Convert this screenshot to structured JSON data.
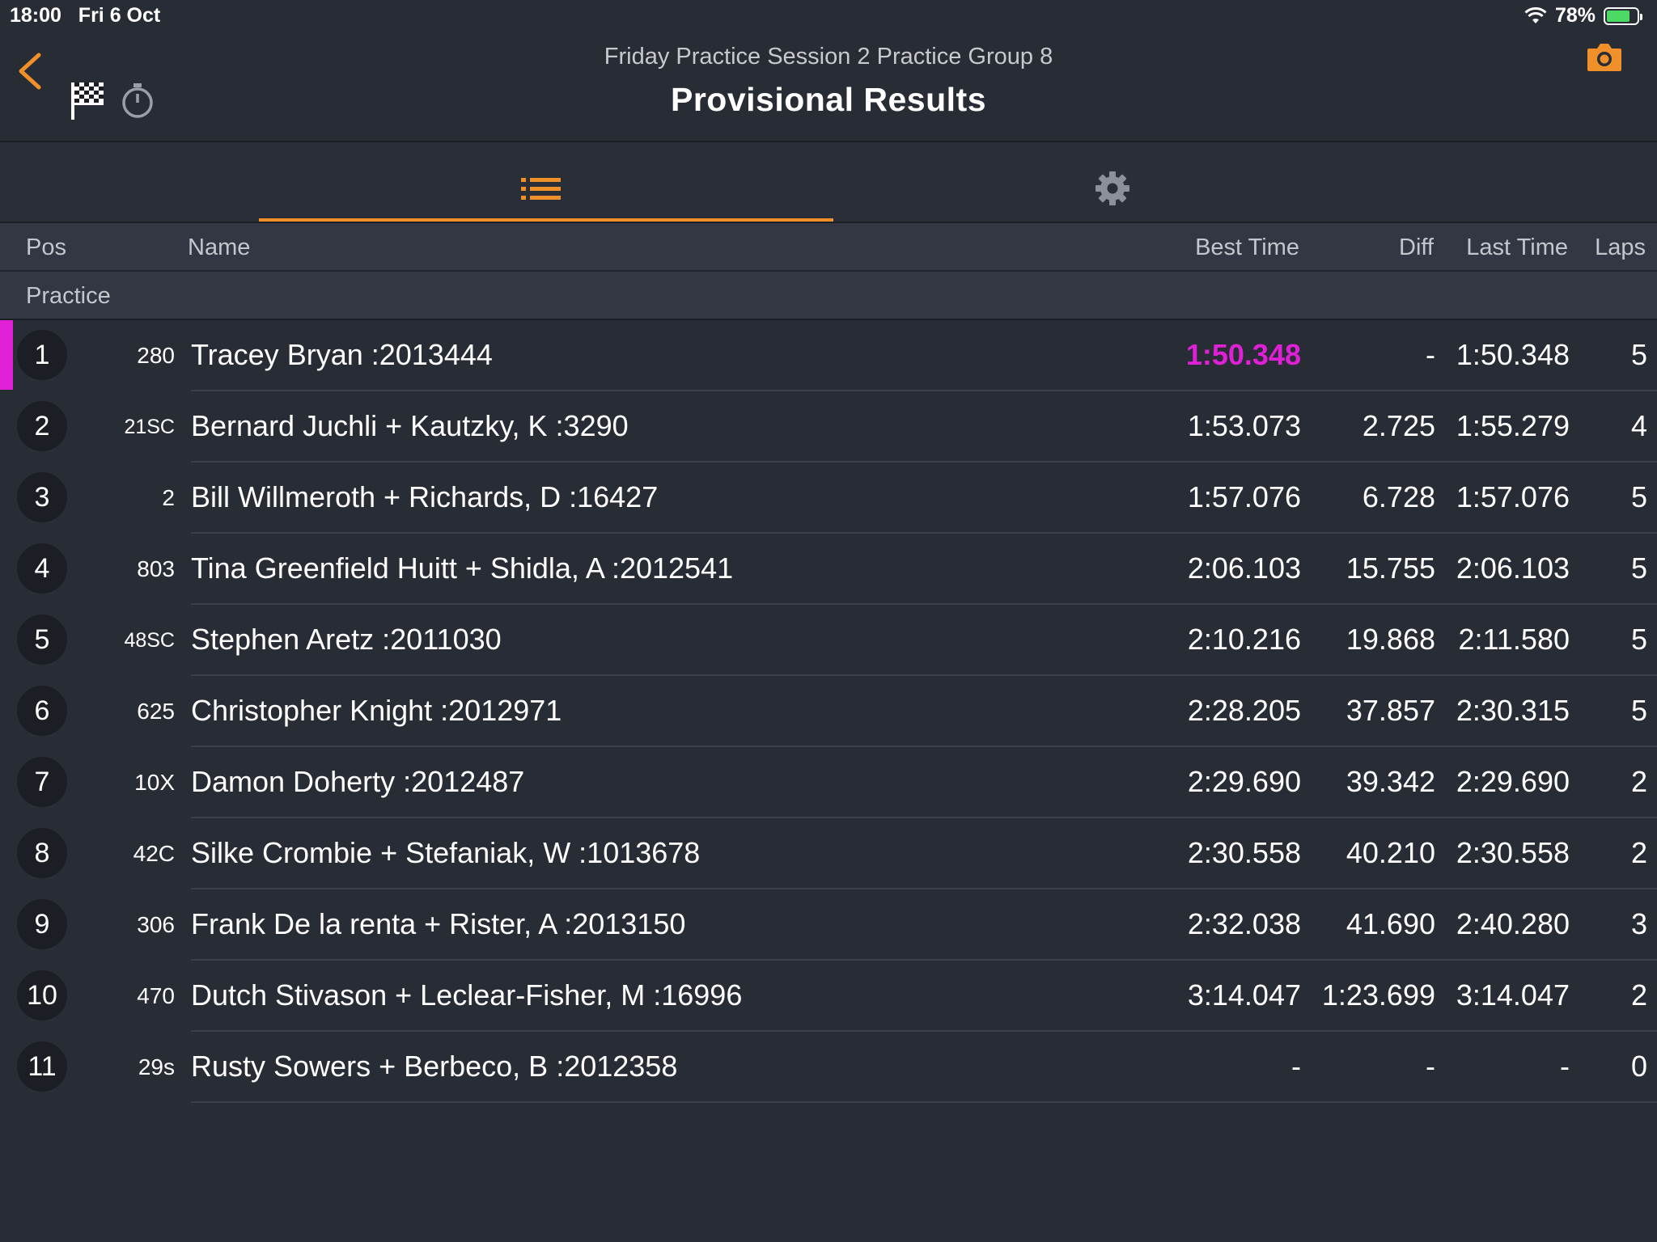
{
  "status": {
    "time": "18:00",
    "date": "Fri 6 Oct",
    "battery": "78%",
    "battery_level": 0.78
  },
  "header": {
    "subtitle": "Friday Practice Session 2 Practice Group 8",
    "title": "Provisional Results",
    "icons": [
      "back-chevron-icon",
      "checkered-flag-icon",
      "stopwatch-icon",
      "camera-icon"
    ]
  },
  "tabs": [
    {
      "name": "list",
      "icon": "list-icon",
      "active": true
    },
    {
      "name": "settings",
      "icon": "gear-icon",
      "active": false
    }
  ],
  "colors": {
    "accent": "#f0902a",
    "best": "#e020d6",
    "background": "#282c35"
  },
  "table": {
    "columns": {
      "pos": "Pos",
      "name": "Name",
      "best": "Best Time",
      "diff": "Diff",
      "last": "Last Time",
      "laps": "Laps"
    },
    "section": "Practice",
    "rows": [
      {
        "pos": "1",
        "num": "280",
        "name": "Tracey Bryan :2013444",
        "best": "1:50.348",
        "diff": "-",
        "last": "1:50.348",
        "laps": "5"
      },
      {
        "pos": "2",
        "num": "21SC",
        "name": "Bernard Juchli + Kautzky, K :3290",
        "best": "1:53.073",
        "diff": "2.725",
        "last": "1:55.279",
        "laps": "4"
      },
      {
        "pos": "3",
        "num": "2",
        "name": "Bill Willmeroth + Richards, D :16427",
        "best": "1:57.076",
        "diff": "6.728",
        "last": "1:57.076",
        "laps": "5"
      },
      {
        "pos": "4",
        "num": "803",
        "name": "Tina Greenfield Huitt + Shidla, A :2012541",
        "best": "2:06.103",
        "diff": "15.755",
        "last": "2:06.103",
        "laps": "5"
      },
      {
        "pos": "5",
        "num": "48SC",
        "name": "Stephen Aretz :2011030",
        "best": "2:10.216",
        "diff": "19.868",
        "last": "2:11.580",
        "laps": "5"
      },
      {
        "pos": "6",
        "num": "625",
        "name": "Christopher Knight :2012971",
        "best": "2:28.205",
        "diff": "37.857",
        "last": "2:30.315",
        "laps": "5"
      },
      {
        "pos": "7",
        "num": "10X",
        "name": "Damon Doherty :2012487",
        "best": "2:29.690",
        "diff": "39.342",
        "last": "2:29.690",
        "laps": "2"
      },
      {
        "pos": "8",
        "num": "42C",
        "name": "Silke Crombie + Stefaniak, W :1013678",
        "best": "2:30.558",
        "diff": "40.210",
        "last": "2:30.558",
        "laps": "2"
      },
      {
        "pos": "9",
        "num": "306",
        "name": "Frank De la renta + Rister, A :2013150",
        "best": "2:32.038",
        "diff": "41.690",
        "last": "2:40.280",
        "laps": "3"
      },
      {
        "pos": "10",
        "num": "470",
        "name": "Dutch Stivason + Leclear-Fisher, M :16996",
        "best": "3:14.047",
        "diff": "1:23.699",
        "last": "3:14.047",
        "laps": "2"
      },
      {
        "pos": "11",
        "num": "29s",
        "name": "Rusty Sowers + Berbeco, B :2012358",
        "best": "-",
        "diff": "-",
        "last": "-",
        "laps": "0"
      }
    ]
  }
}
